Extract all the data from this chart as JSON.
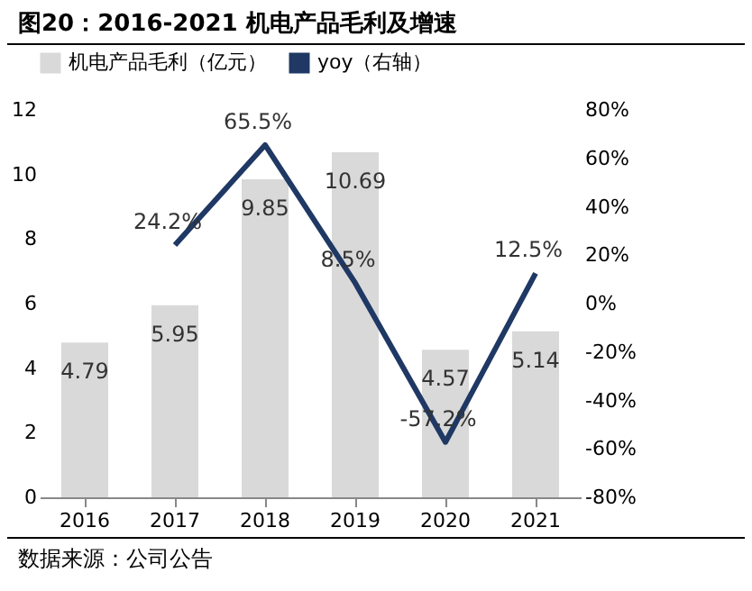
{
  "chart_data": {
    "type": "bar",
    "title": "图20：2016-2021 机电产品毛利及增速",
    "categories": [
      "2016",
      "2017",
      "2018",
      "2019",
      "2020",
      "2021"
    ],
    "series": [
      {
        "name": "机电产品毛利（亿元）",
        "color": "#d9d9d9",
        "values": [
          4.79,
          5.95,
          9.85,
          10.69,
          4.57,
          5.14
        ],
        "value_labels": [
          "4.79",
          "5.95",
          "9.85",
          "10.69",
          "4.57",
          "5.14"
        ]
      },
      {
        "name": "yoy（右轴）",
        "type": "line",
        "axis": "y2",
        "color": "#1f3864",
        "values": [
          null,
          24.2,
          65.5,
          8.5,
          -57.2,
          12.5
        ],
        "value_labels": [
          null,
          "24.2%",
          "65.5%",
          "8.5%",
          "-57.2%",
          "12.5%"
        ]
      }
    ],
    "ylim": [
      0,
      12
    ],
    "yticks": [
      0,
      2,
      4,
      6,
      8,
      10,
      12
    ],
    "y2lim": [
      -80,
      80
    ],
    "y2ticks": [
      {
        "value": -80,
        "label": "-80%"
      },
      {
        "value": -60,
        "label": "-60%"
      },
      {
        "value": -40,
        "label": "-40%"
      },
      {
        "value": -20,
        "label": "-20%"
      },
      {
        "value": 0,
        "label": "0%"
      },
      {
        "value": 20,
        "label": "20%"
      },
      {
        "value": 40,
        "label": "40%"
      },
      {
        "value": 60,
        "label": "60%"
      },
      {
        "value": 80,
        "label": "80%"
      }
    ],
    "grid": false,
    "legend": "top",
    "marker": "none",
    "line_style": "solid",
    "annotations": [
      "数据来源：公司公告"
    ]
  }
}
